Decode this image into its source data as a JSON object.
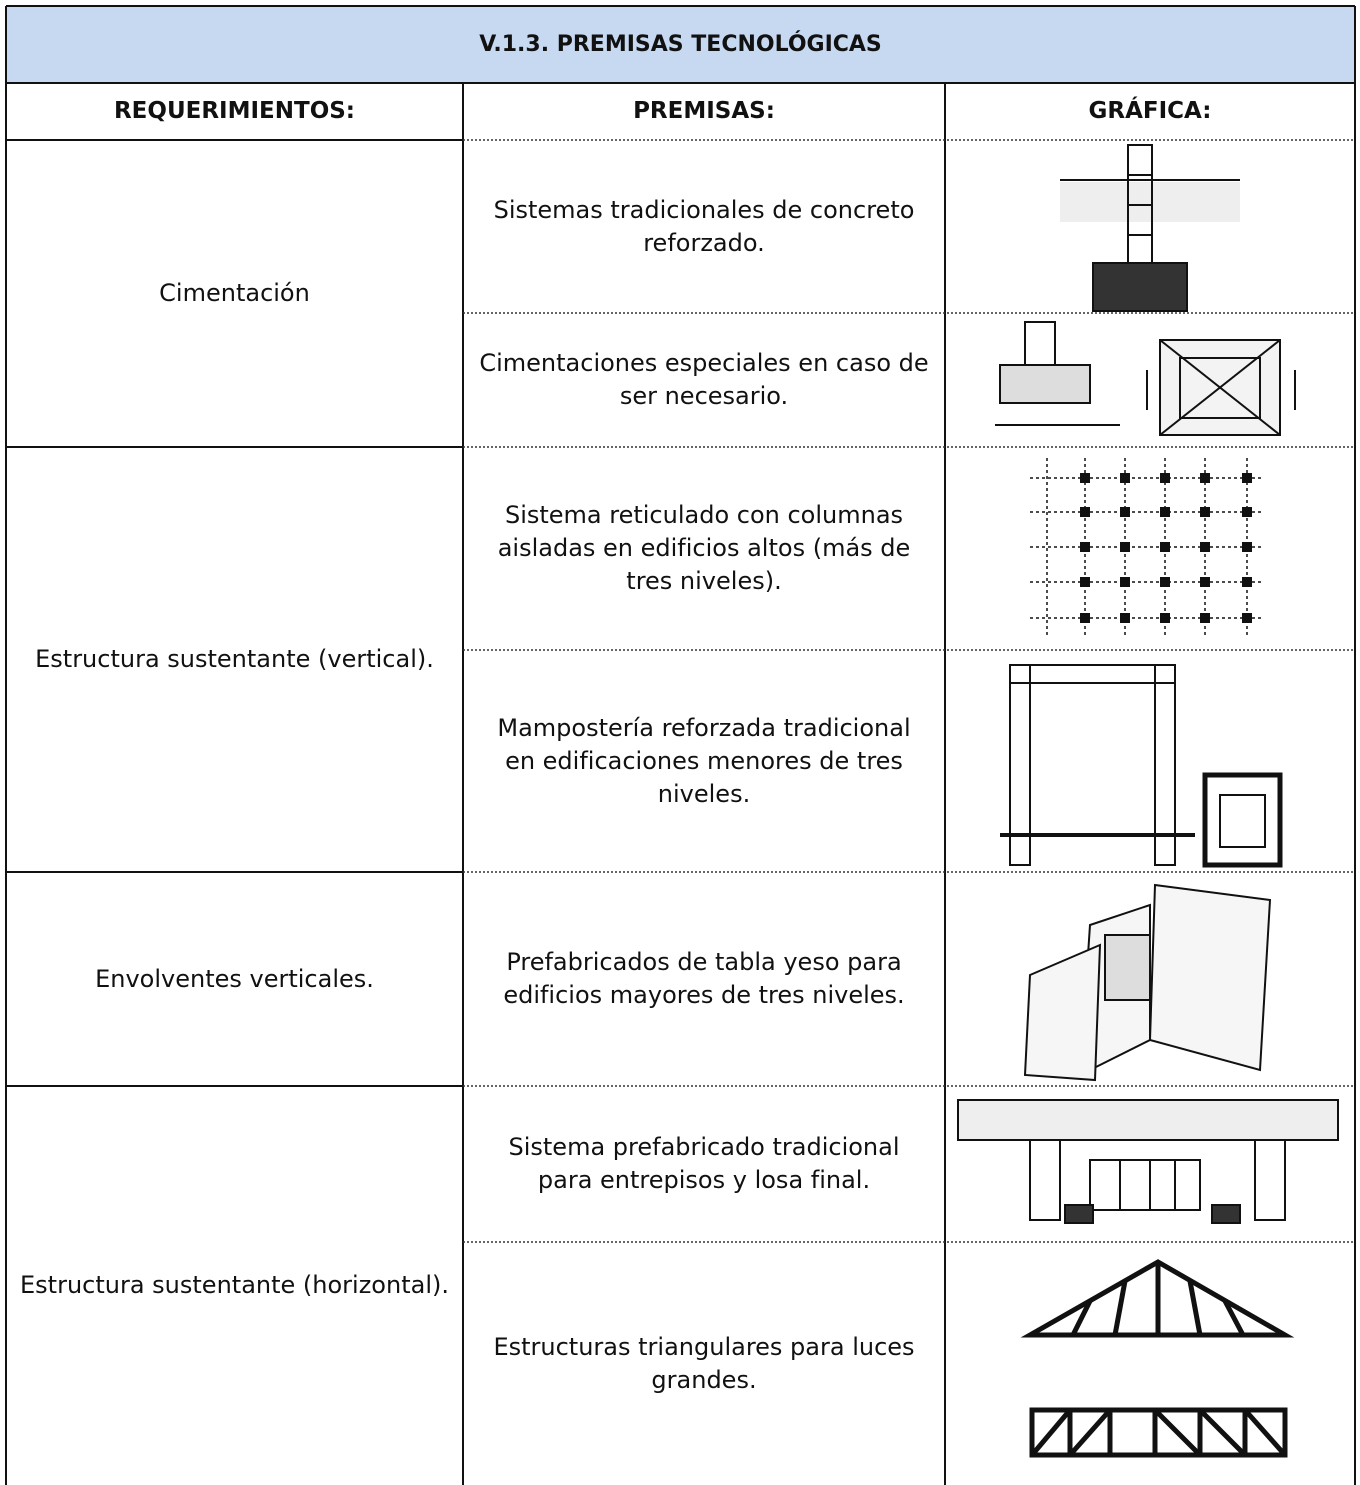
{
  "title": "V.1.3. PREMISAS TECNOLÓGICAS",
  "headers": [
    "REQUERIMIENTOS:",
    "PREMISAS:",
    "GRÁFICA:"
  ],
  "rows": [
    {
      "requirement": "Cimentación",
      "premises": [
        "Sistemas tradicionales de concreto reforzado.",
        "Cimentaciones especiales en caso de ser necesario."
      ]
    },
    {
      "requirement": "Estructura sustentante (vertical).",
      "premises": [
        "Sistema reticulado con columnas aisladas en edificios altos (más de tres niveles).",
        "Mampostería reforzada tradicional en edificaciones menores de tres niveles."
      ]
    },
    {
      "requirement": "Envolventes verticales.",
      "premises": [
        "Prefabricados de tabla yeso para edificios mayores de tres niveles."
      ]
    },
    {
      "requirement": "Estructura sustentante (horizontal).",
      "premises": [
        "Sistema prefabricado tradicional para entrepisos y losa final.",
        "Estructuras triangulares para luces grandes."
      ]
    }
  ]
}
